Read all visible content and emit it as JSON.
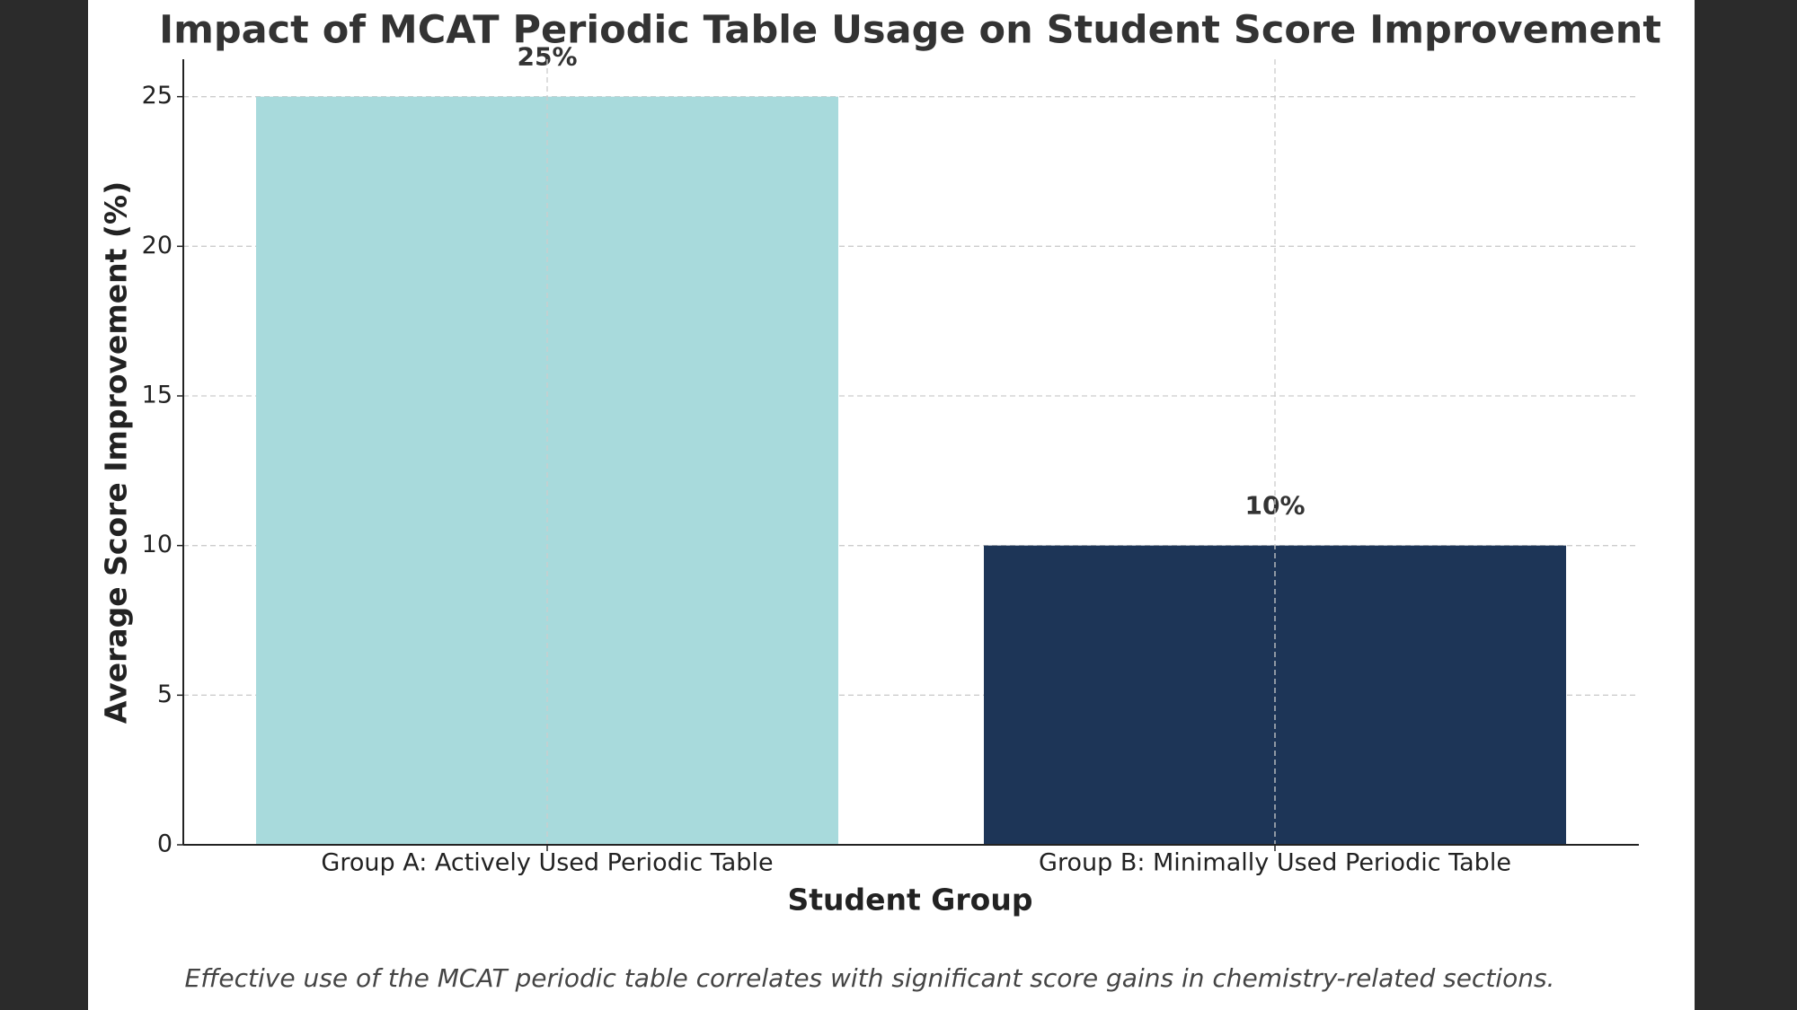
{
  "chart_data": {
    "type": "bar",
    "title": "Impact of MCAT Periodic Table Usage on Student Score Improvement",
    "x_label": "Student Group",
    "y_label": "Average Score Improvement (%)",
    "caption": "Effective use of the MCAT periodic table correlates with significant score gains in chemistry-related sections.",
    "categories": [
      "Group A: Actively Used Periodic Table",
      "Group B: Minimally Used Periodic Table"
    ],
    "values": [
      25,
      10
    ],
    "value_labels": [
      "25%",
      "10%"
    ],
    "colors": [
      "#a8dadc",
      "#1d3557"
    ],
    "ylim": [
      0,
      26.25
    ],
    "yticks": [
      0,
      5,
      10,
      15,
      20,
      25
    ],
    "grid": true
  }
}
